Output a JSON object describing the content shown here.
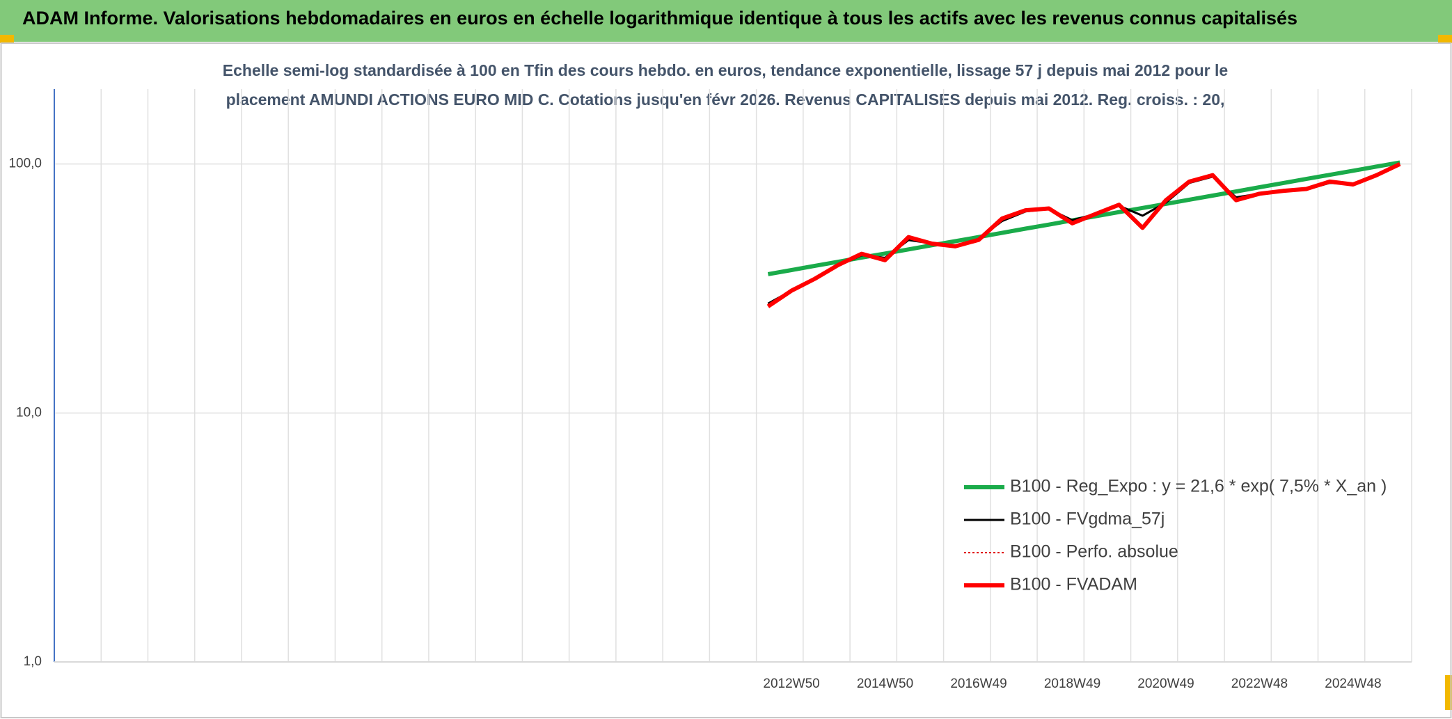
{
  "chart_data": {
    "type": "line",
    "title": "ADAM Informe. Valorisations hebdomadaires en euros en échelle logarithmique identique à tous les actifs avec les revenus connus capitalisés",
    "subtitle": [
      "Echelle semi-log standardisée à 100 en Tfin des cours hebdo. en euros, tendance exponentielle, lissage 57 j depuis mai 2012 pour le",
      "placement AMUNDI ACTIONS EURO MID C. Cotations jusqu'en févr 2026. Revenus CAPITALISES depuis mai 2012. Reg. croiss. : 20,"
    ],
    "categories": [
      null,
      null,
      null,
      null,
      null,
      null,
      null,
      null,
      null,
      null,
      null,
      null,
      null,
      null,
      null,
      null,
      null,
      null,
      null,
      null,
      null,
      null,
      null,
      null,
      null,
      null,
      null,
      null,
      null,
      null,
      null,
      "2012W50",
      null,
      null,
      null,
      "2014W50",
      null,
      null,
      null,
      "2016W49",
      null,
      null,
      null,
      "2018W49",
      null,
      null,
      null,
      "2020W49",
      null,
      null,
      null,
      "2022W48",
      null,
      null,
      null,
      "2024W48",
      null,
      null
    ],
    "yscale": "log",
    "ylim": [
      1,
      200
    ],
    "yticks": [
      {
        "value": 1,
        "label": "1,0"
      },
      {
        "value": 10,
        "label": "10,0"
      },
      {
        "value": 100,
        "label": "100,0"
      }
    ],
    "grid": true,
    "legend": "lower right",
    "series": [
      {
        "name": "B100 - Reg_Expo : y = 21,6 * exp( 7,5% *  X_an )",
        "color": "#1aab4a",
        "style": "solid",
        "values": [
          null,
          null,
          null,
          null,
          null,
          null,
          null,
          null,
          null,
          null,
          null,
          null,
          null,
          null,
          null,
          null,
          null,
          null,
          null,
          null,
          null,
          null,
          null,
          null,
          null,
          null,
          null,
          null,
          null,
          null,
          36.1,
          37.5,
          39.0,
          40.5,
          42.1,
          43.7,
          45.4,
          47.2,
          49.0,
          50.9,
          52.9,
          55.0,
          57.1,
          59.4,
          61.7,
          64.1,
          66.6,
          69.2,
          71.9,
          74.7,
          77.6,
          80.7,
          83.8,
          87.1,
          90.5,
          94.0,
          97.7,
          101.5
        ]
      },
      {
        "name": "B100 - FVgdma_57j",
        "color": "#000000",
        "style": "solid",
        "values": [
          null,
          null,
          null,
          null,
          null,
          null,
          null,
          null,
          null,
          null,
          null,
          null,
          null,
          null,
          null,
          null,
          null,
          null,
          null,
          null,
          null,
          null,
          null,
          null,
          null,
          null,
          null,
          null,
          null,
          null,
          27.5,
          31,
          34.5,
          39,
          43,
          42,
          49.5,
          48,
          47,
          50,
          59,
          64.5,
          66,
          59.5,
          63,
          68,
          62,
          70,
          84,
          89,
          73.5,
          76,
          78,
          79,
          84,
          83,
          89.5,
          99
        ]
      },
      {
        "name": "B100 - Perfo. absolue",
        "color": "#e00000",
        "style": "dotted",
        "values": [
          null,
          null,
          null,
          null,
          null,
          null,
          null,
          null,
          null,
          null,
          null,
          null,
          null,
          null,
          null,
          null,
          null,
          null,
          null,
          null,
          null,
          null,
          null,
          null,
          null,
          null,
          null,
          null,
          null,
          null,
          26.8,
          31.0,
          34.6,
          39.3,
          43.6,
          41.1,
          50.9,
          47.9,
          46.7,
          49.6,
          60.4,
          65.2,
          66.3,
          57.8,
          63.0,
          68.6,
          55.4,
          71.6,
          85.0,
          90.2,
          71.6,
          76.0,
          78.0,
          79.4,
          85.0,
          82.8,
          90.2,
          100.0
        ]
      },
      {
        "name": "B100 - FVADAM",
        "color": "#ff0000",
        "style": "solid",
        "values": [
          null,
          null,
          null,
          null,
          null,
          null,
          null,
          null,
          null,
          null,
          null,
          null,
          null,
          null,
          null,
          null,
          null,
          null,
          null,
          null,
          null,
          null,
          null,
          null,
          null,
          null,
          null,
          null,
          null,
          null,
          26.8,
          31.0,
          34.6,
          39.3,
          43.6,
          41.1,
          50.9,
          47.9,
          46.7,
          49.6,
          60.4,
          65.2,
          66.3,
          57.8,
          63.0,
          68.6,
          55.4,
          71.6,
          85.0,
          90.2,
          71.6,
          76.0,
          78.0,
          79.4,
          85.0,
          82.8,
          90.2,
          100.0
        ]
      }
    ]
  }
}
